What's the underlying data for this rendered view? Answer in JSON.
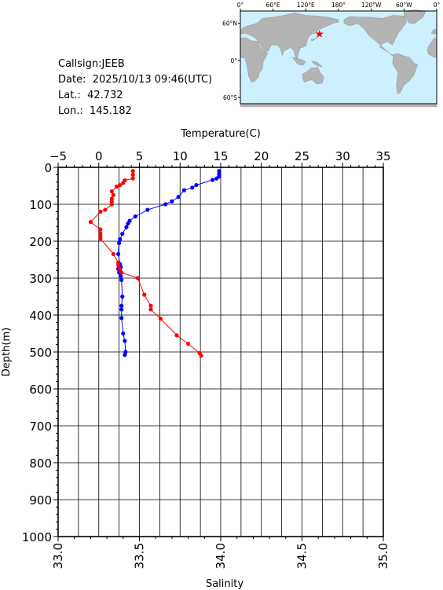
{
  "info": {
    "callsign": "Callsign:JEEB",
    "date": "Date:  2025/10/13 09:46(UTC)",
    "lat": "Lat.:  42.732",
    "lon": "Lon.:  145.182"
  },
  "map": {
    "top_labels": [
      "0°",
      "60°E",
      "120°E",
      "180°",
      "120°W",
      "60°W",
      "0°"
    ],
    "side_labels": [
      "60°N",
      "0°",
      "60°S"
    ],
    "ocean_color": "#cdf0ff",
    "land_color": "#b4b4b4",
    "station": {
      "lat": 42.732,
      "lon": 145.182,
      "marker": "star-icon",
      "color": "#ff0000"
    }
  },
  "chart_data": {
    "type": "line",
    "title": "",
    "top_axis": {
      "label": "Temperature(C)",
      "lim": [
        -5,
        35
      ],
      "ticks": [
        "−5",
        "0",
        "5",
        "10",
        "15",
        "20",
        "25",
        "30",
        "35"
      ]
    },
    "bottom_axis": {
      "label": "Salinity",
      "lim": [
        33.0,
        35.0
      ],
      "ticks": [
        "33.0",
        "33.5",
        "34.0",
        "34.5",
        "35.0"
      ]
    },
    "y_axis": {
      "label": "Depth(m)",
      "lim": [
        0,
        1000
      ],
      "inverted": true,
      "ticks": [
        "0",
        "100",
        "200",
        "300",
        "400",
        "500",
        "600",
        "700",
        "800",
        "900",
        "1000"
      ]
    },
    "grid": true,
    "series": [
      {
        "color": "#0000ff",
        "axis": "temperature",
        "points": [
          [
            14.8,
            10
          ],
          [
            14.8,
            18
          ],
          [
            14.8,
            25
          ],
          [
            14.5,
            30
          ],
          [
            14.0,
            34
          ],
          [
            12.0,
            48
          ],
          [
            11.5,
            55
          ],
          [
            10.5,
            62
          ],
          [
            9.8,
            80
          ],
          [
            9.0,
            92
          ],
          [
            8.2,
            100
          ],
          [
            6.0,
            115
          ],
          [
            4.5,
            133
          ],
          [
            3.8,
            145
          ],
          [
            3.6,
            152
          ],
          [
            3.4,
            162
          ],
          [
            2.9,
            180
          ],
          [
            2.6,
            195
          ],
          [
            2.5,
            205
          ],
          [
            2.4,
            235
          ],
          [
            2.6,
            262
          ],
          [
            2.7,
            270
          ],
          [
            2.4,
            275
          ],
          [
            2.6,
            280
          ],
          [
            2.5,
            285
          ],
          [
            2.7,
            295
          ],
          [
            2.8,
            305
          ],
          [
            2.9,
            350
          ],
          [
            2.8,
            375
          ],
          [
            2.8,
            385
          ],
          [
            2.8,
            408
          ],
          [
            3.0,
            450
          ],
          [
            3.2,
            470
          ],
          [
            3.3,
            500
          ],
          [
            3.2,
            508
          ]
        ]
      },
      {
        "color": "#ff0000",
        "axis": "salinity",
        "points": [
          [
            33.46,
            10
          ],
          [
            33.46,
            20
          ],
          [
            33.46,
            30
          ],
          [
            33.41,
            35
          ],
          [
            33.4,
            42
          ],
          [
            33.38,
            48
          ],
          [
            33.36,
            52
          ],
          [
            33.33,
            65
          ],
          [
            33.34,
            75
          ],
          [
            33.33,
            85
          ],
          [
            33.33,
            93
          ],
          [
            33.33,
            100
          ],
          [
            33.29,
            115
          ],
          [
            33.26,
            120
          ],
          [
            33.2,
            148
          ],
          [
            33.26,
            168
          ],
          [
            33.26,
            178
          ],
          [
            33.26,
            185
          ],
          [
            33.26,
            193
          ],
          [
            33.34,
            235
          ],
          [
            33.37,
            258
          ],
          [
            33.37,
            265
          ],
          [
            33.38,
            275
          ],
          [
            33.39,
            285
          ],
          [
            33.49,
            300
          ],
          [
            33.53,
            345
          ],
          [
            33.57,
            375
          ],
          [
            33.57,
            385
          ],
          [
            33.63,
            410
          ],
          [
            33.73,
            455
          ],
          [
            33.8,
            478
          ],
          [
            33.87,
            503
          ],
          [
            33.88,
            510
          ]
        ]
      }
    ]
  }
}
